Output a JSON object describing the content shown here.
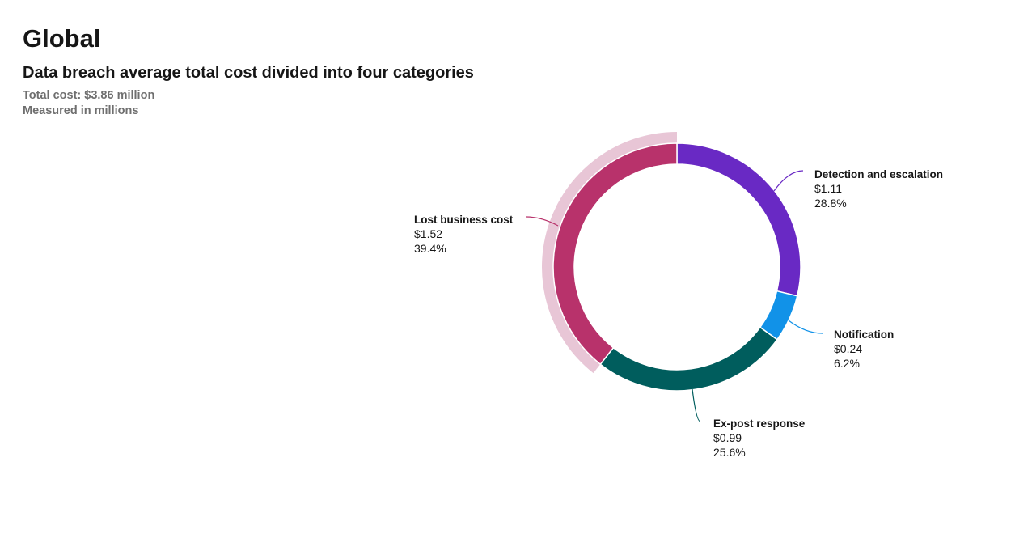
{
  "header": {
    "title": "Global",
    "subtitle": "Data breach average total cost divided into four categories",
    "total_cost": "Total cost: $3.86 million",
    "unit_note": "Measured in millions"
  },
  "chart_data": {
    "type": "pie",
    "variant": "donut",
    "total": 3.86,
    "highlighted": "Lost business cost",
    "slices": [
      {
        "label": "Detection and escalation",
        "value": 1.11,
        "value_label": "$1.11",
        "percent_label": "28.8%",
        "color": "#6929c4"
      },
      {
        "label": "Notification",
        "value": 0.24,
        "value_label": "$0.24",
        "percent_label": "6.2%",
        "color": "#1192e8"
      },
      {
        "label": "Ex-post response",
        "value": 0.99,
        "value_label": "$0.99",
        "percent_label": "25.6%",
        "color": "#005d5d"
      },
      {
        "label": "Lost business cost",
        "value": 1.52,
        "value_label": "$1.52",
        "percent_label": "39.4%",
        "color": "#b8326b",
        "halo_color": "#e8c6d6"
      }
    ]
  }
}
